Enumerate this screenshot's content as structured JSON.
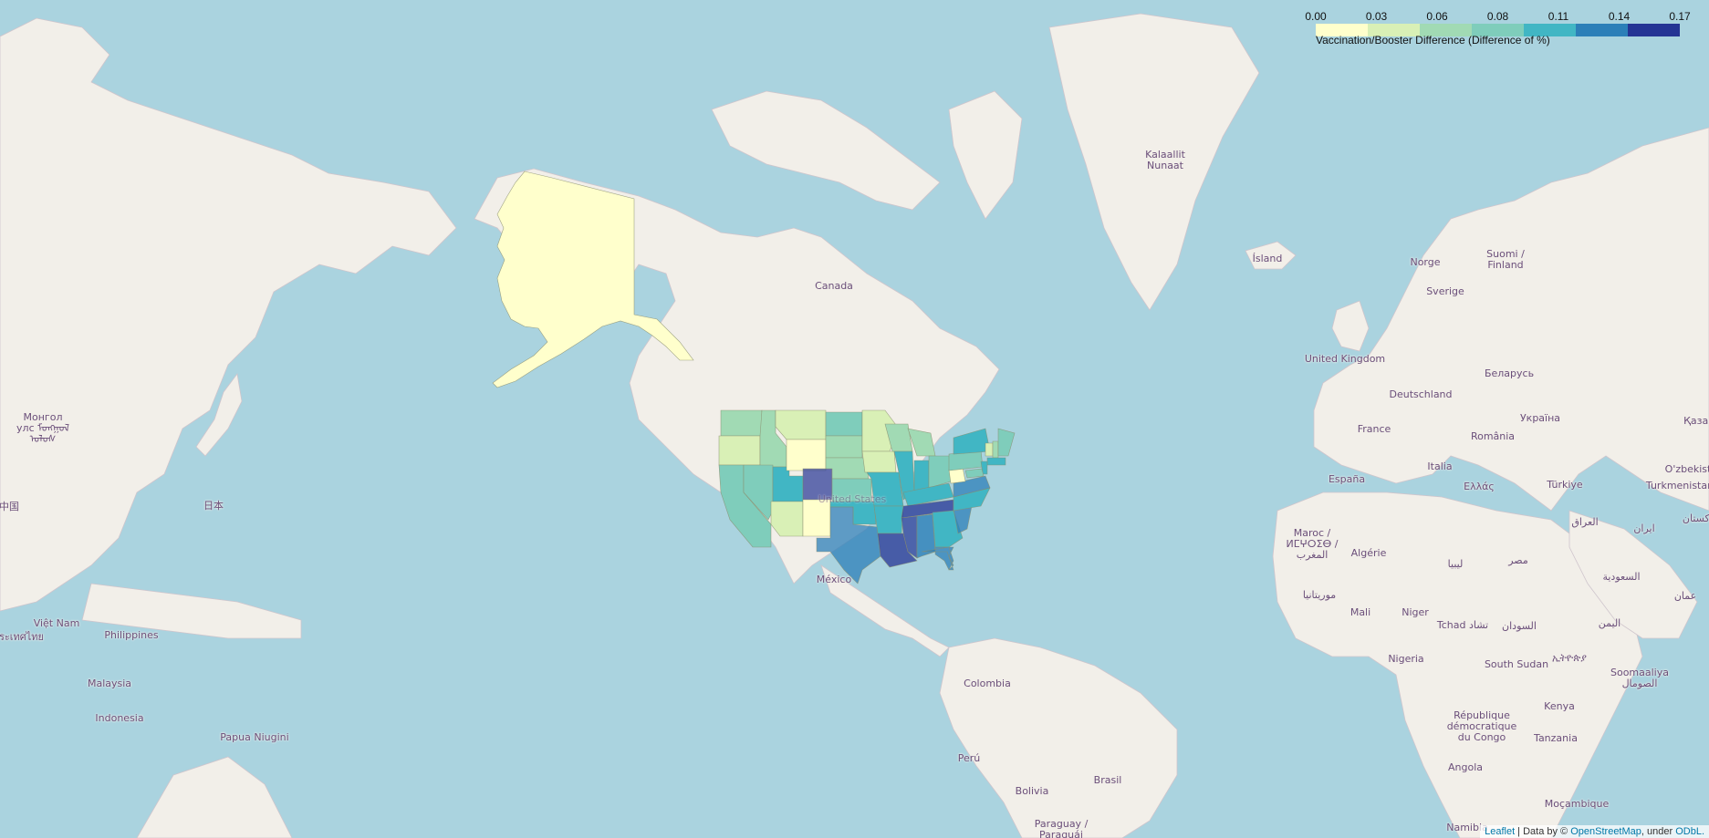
{
  "legend": {
    "ticks": [
      "0.00",
      "0.03",
      "0.06",
      "0.08",
      "0.11",
      "0.14",
      "0.17"
    ],
    "caption": "Vaccination/Booster Difference (Difference of %)",
    "colors": [
      "#ffffcc",
      "#d9f0b6",
      "#a1dab4",
      "#7fcdbb",
      "#41b6c4",
      "#2c7fb8",
      "#253494"
    ]
  },
  "labels": {
    "kalaallit": "Kalaallit Nunaat",
    "island": "Ísland",
    "canada": "Canada",
    "norge": "Norge",
    "sverige": "Sverige",
    "suomi": "Suomi / Finland",
    "uk": "United Kingdom",
    "belarus": "Беларусь",
    "deutschland": "Deutschland",
    "ukraina": "Україна",
    "kazakh": "Қазақ",
    "france": "France",
    "romania": "România",
    "italia": "Italia",
    "espana": "España",
    "ellas": "Ελλάς",
    "turkiye": "Türkiye",
    "uzbek": "O'zbekist",
    "turkmen": "Turkmenistan",
    "iraq": "العراق",
    "iran": "ایران",
    "pakistan": "پاکستان",
    "maroc": "Maroc / ⵍⵎⵖⵔⵉⴱ / المغرب",
    "algerie": "Algérie",
    "libya": "ليبيا",
    "misr": "مصر",
    "saudi": "السعودية",
    "oman": "عمان",
    "mauritania": "موريتانيا",
    "mali": "Mali",
    "niger": "Niger",
    "tchad": "Tchad تشاد",
    "sudan": "السودان",
    "yemen": "اليمن",
    "ethiopia": "ኢትዮጵያ",
    "nigeria": "Nigeria",
    "southsudan": "South Sudan",
    "somalia": "Soomaaliya الصومال",
    "kenya": "Kenya",
    "rdc": "République démocratique du Congo",
    "tanzania": "Tanzania",
    "angola": "Angola",
    "mocambique": "Moçambique",
    "namibia": "Namibia",
    "mongol": "Монгол улс ᠮᠤᠩᠭᠤᠯ ᠤᠯᠤᠰ",
    "china": "中国",
    "japan": "日本",
    "vietnam": "Việt Nam",
    "thailand": "ประเทศไทย",
    "philippines": "Philippines",
    "malaysia": "Malaysia",
    "indonesia": "Indonesia",
    "png": "Papua Niugini",
    "mexico": "México",
    "usa": "United States",
    "colombia": "Colombia",
    "peru": "Perú",
    "brasil": "Brasil",
    "bolivia": "Bolivia",
    "paraguay": "Paraguay / Paraguái"
  },
  "attribution": {
    "leaflet": "Leaflet",
    "sep": " | Data by © ",
    "osm": "OpenStreetMap",
    "under": ", under ",
    "odbl": "ODbL."
  }
}
